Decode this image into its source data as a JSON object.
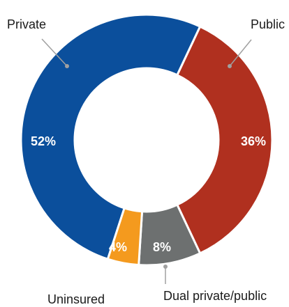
{
  "chart_data": {
    "type": "pie",
    "title": "",
    "donut": true,
    "slices": [
      {
        "label": "Private",
        "value": 52,
        "display": "52%",
        "color": "#0b4f9c"
      },
      {
        "label": "Public",
        "value": 36,
        "display": "36%",
        "color": "#b0301f"
      },
      {
        "label": "Dual private/public",
        "value": 8,
        "display": "8%",
        "color": "#6d7070"
      },
      {
        "label": "Uninsured",
        "value": 4,
        "display": "4%",
        "color": "#f49a1e"
      }
    ]
  }
}
